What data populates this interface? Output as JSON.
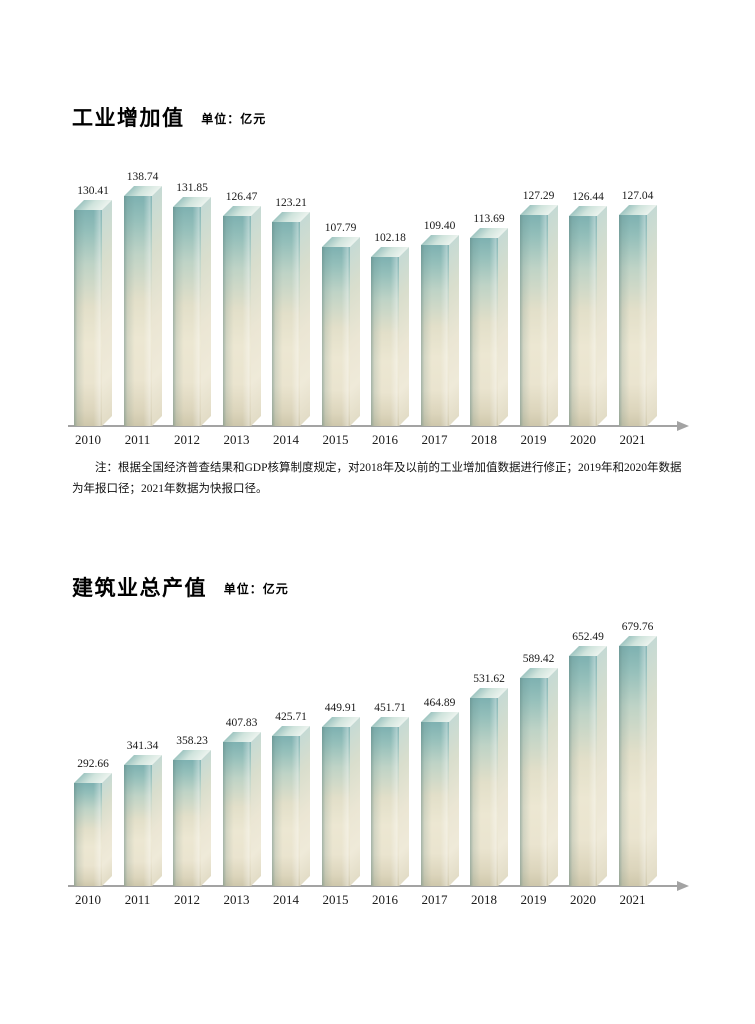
{
  "chart_data": [
    {
      "type": "bar",
      "title": "工业增加值",
      "unit_label": "单位：亿元",
      "categories": [
        "2010",
        "2011",
        "2012",
        "2013",
        "2014",
        "2015",
        "2016",
        "2017",
        "2018",
        "2019",
        "2020",
        "2021"
      ],
      "values": [
        130.41,
        138.74,
        131.85,
        126.47,
        123.21,
        107.79,
        102.18,
        109.4,
        113.69,
        127.29,
        126.44,
        127.04
      ],
      "value_labels": [
        "130.41",
        "138.74",
        "131.85",
        "126.47",
        "123.21",
        "107.79",
        "102.18",
        "109.40",
        "113.69",
        "127.29",
        "126.44",
        "127.04"
      ],
      "xlabel": "",
      "ylabel": "",
      "bar_style": "3d-extruded-gradient",
      "grid": false,
      "legend": "none",
      "value_labels_shown": true,
      "x_axis_arrow": true,
      "note": "注：根据全国经济普查结果和GDP核算制度规定，对2018年及以前的工业增加值数据进行修正；2019年和2020年数据为年报口径；2021年数据为快报口径。"
    },
    {
      "type": "bar",
      "title": "建筑业总产值",
      "unit_label": "单位：亿元",
      "categories": [
        "2010",
        "2011",
        "2012",
        "2013",
        "2014",
        "2015",
        "2016",
        "2017",
        "2018",
        "2019",
        "2020",
        "2021"
      ],
      "values": [
        292.66,
        341.34,
        358.23,
        407.83,
        425.71,
        449.91,
        451.71,
        464.89,
        531.62,
        589.42,
        652.49,
        679.76
      ],
      "value_labels": [
        "292.66",
        "341.34",
        "358.23",
        "407.83",
        "425.71",
        "449.91",
        "451.71",
        "464.89",
        "531.62",
        "589.42",
        "652.49",
        "679.76"
      ],
      "xlabel": "",
      "ylabel": "",
      "bar_style": "3d-extruded-gradient",
      "grid": false,
      "legend": "none",
      "value_labels_shown": true,
      "x_axis_arrow": true
    }
  ],
  "colors": {
    "background": "#ffffff",
    "bar_teal_top": "#7eb1b1",
    "bar_cream_mid": "#ece7d2",
    "bar_bottom_tan": "#cec7ab",
    "bar_side_light": "#ebe6d4",
    "bar_top_face": "#cfe3dc",
    "axis_gray": "#a3a3a3",
    "text": "#111111"
  }
}
